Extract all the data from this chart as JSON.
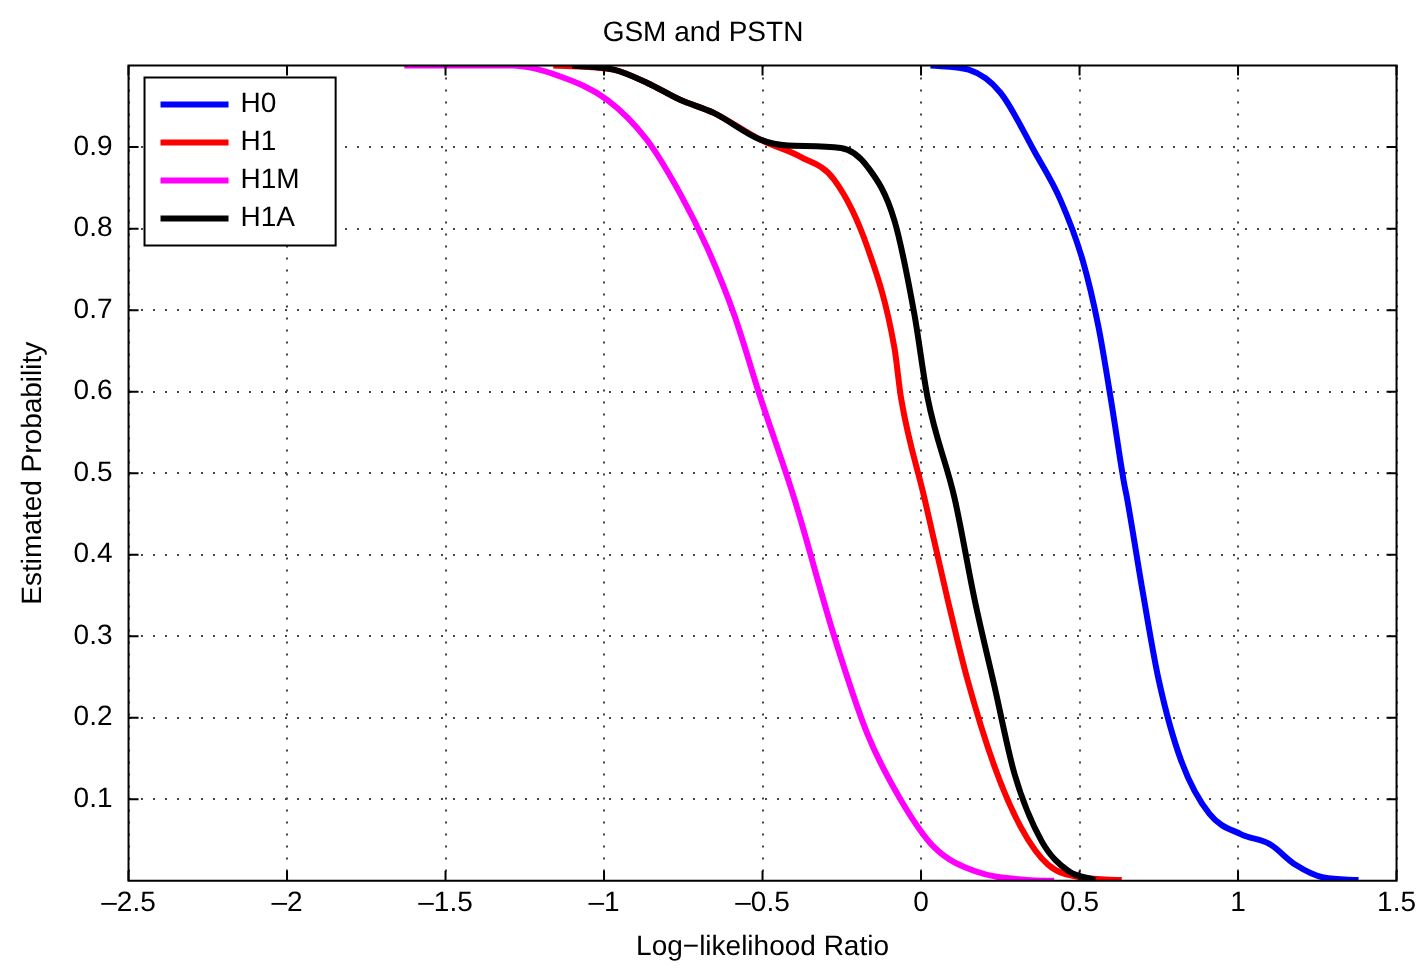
{
  "chart_data": {
    "type": "line",
    "title": "GSM and PSTN",
    "xlabel": "Log−likelihood Ratio",
    "ylabel": "Estimated Probability",
    "xlim": [
      -2.5,
      1.5
    ],
    "xticks": [
      {
        "value": -2.5,
        "label": "–2.5"
      },
      {
        "value": -2,
        "label": "–2"
      },
      {
        "value": -1.5,
        "label": "–1.5"
      },
      {
        "value": -1,
        "label": "–1"
      },
      {
        "value": -0.5,
        "label": "–0.5"
      },
      0,
      0.5,
      1,
      1.5
    ],
    "ylim": [
      0,
      1
    ],
    "yticks": [
      0.1,
      0.2,
      0.3,
      0.4,
      0.5,
      0.6,
      0.7,
      0.8,
      0.9
    ],
    "grid": true,
    "legend": "top left",
    "line_style": "solid",
    "marker": "none",
    "series": [
      {
        "name": "H0",
        "color": "#0000ff",
        "x": [
          0.03,
          0.15,
          0.25,
          0.36,
          0.44,
          0.51,
          0.56,
          0.6,
          0.64,
          0.65,
          0.7,
          0.75,
          0.82,
          0.91,
          1.01,
          1.1,
          1.18,
          1.27,
          1.38
        ],
        "values": [
          1.0,
          0.995,
          0.967,
          0.893,
          0.835,
          0.761,
          0.679,
          0.588,
          0.489,
          0.469,
          0.353,
          0.246,
          0.148,
          0.082,
          0.057,
          0.045,
          0.02,
          0.004,
          0.001
        ]
      },
      {
        "name": "H1",
        "color": "#ff0000",
        "x": [
          -1.16,
          -0.97,
          -0.865,
          -0.76,
          -0.654,
          -0.506,
          -0.38,
          -0.274,
          -0.169,
          -0.084,
          -0.063,
          0.011,
          0.084,
          0.147,
          0.232,
          0.316,
          0.4,
          0.506,
          0.633
        ],
        "values": [
          1.0,
          0.995,
          0.979,
          0.958,
          0.942,
          0.909,
          0.888,
          0.86,
          0.777,
          0.654,
          0.592,
          0.469,
          0.345,
          0.246,
          0.14,
          0.065,
          0.02,
          0.004,
          0.001
        ]
      },
      {
        "name": "H1M",
        "color": "#ff00ff",
        "x": [
          -1.63,
          -1.29,
          -1.14,
          -0.99,
          -0.865,
          -0.76,
          -0.675,
          -0.59,
          -0.506,
          -0.4,
          -0.274,
          -0.169,
          -0.062,
          0.042,
          0.169,
          0.335,
          0.42
        ],
        "values": [
          1.0,
          1.0,
          0.987,
          0.958,
          0.909,
          0.843,
          0.777,
          0.695,
          0.592,
          0.469,
          0.3,
          0.18,
          0.098,
          0.041,
          0.012,
          0.001,
          0.0
        ]
      },
      {
        "name": "H1A",
        "color": "#000000",
        "x": [
          -1.1,
          -0.97,
          -0.865,
          -0.76,
          -0.654,
          -0.506,
          -0.42,
          -0.253,
          -0.169,
          -0.084,
          -0.021,
          0.021,
          0.106,
          0.169,
          0.232,
          0.295,
          0.38,
          0.465,
          0.55
        ],
        "values": [
          1.0,
          0.995,
          0.979,
          0.958,
          0.942,
          0.909,
          0.902,
          0.899,
          0.876,
          0.81,
          0.695,
          0.592,
          0.469,
          0.345,
          0.238,
          0.131,
          0.049,
          0.012,
          0.001
        ]
      }
    ]
  }
}
